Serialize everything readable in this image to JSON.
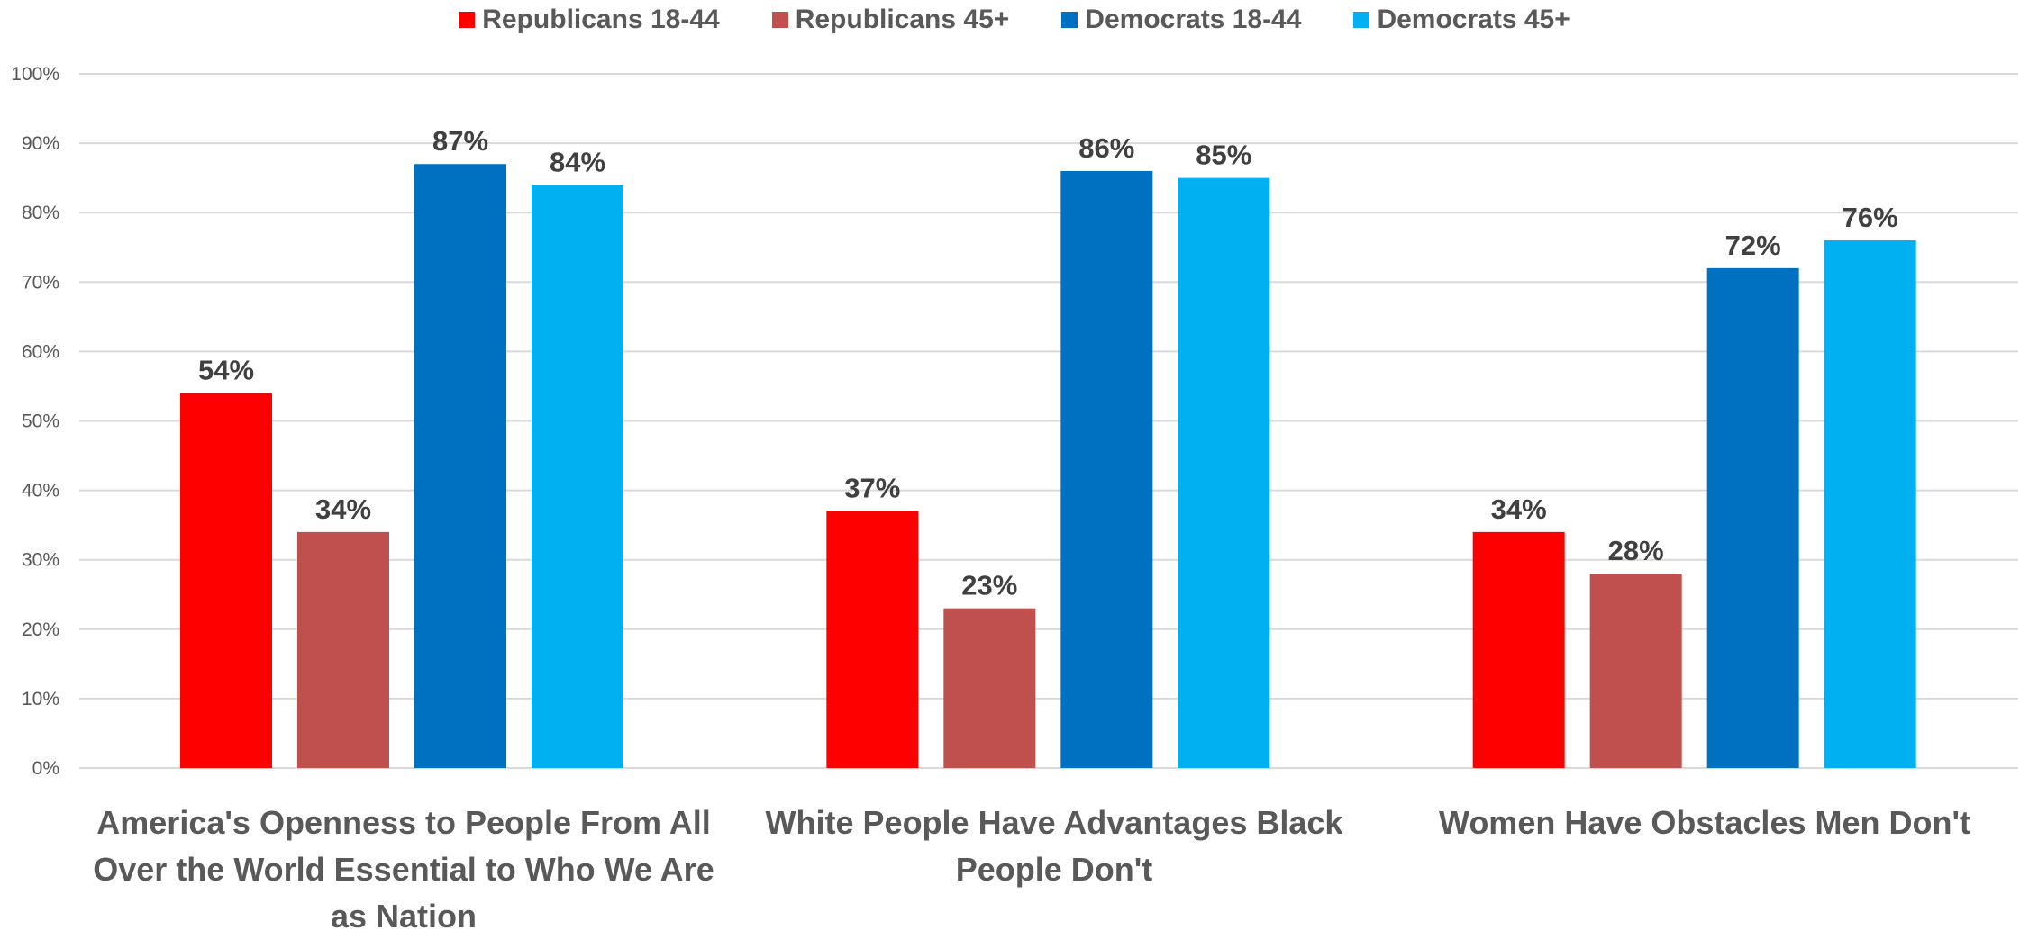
{
  "chart_data": {
    "type": "bar",
    "categories": [
      "America's Openness to People From All Over the World Essential to Who We Are as Nation",
      "White People Have Advantages Black People Don't",
      "Women Have Obstacles Men Don't"
    ],
    "series": [
      {
        "name": "Republicans 18-44",
        "color": "#FF0000",
        "values": [
          54,
          37,
          34
        ]
      },
      {
        "name": "Republicans 45+",
        "color": "#C0504D",
        "values": [
          34,
          23,
          28
        ]
      },
      {
        "name": "Democrats 18-44",
        "color": "#0070C0",
        "values": [
          87,
          86,
          72
        ]
      },
      {
        "name": "Democrats 45+",
        "color": "#00B0F0",
        "values": [
          84,
          85,
          76
        ]
      }
    ],
    "data_labels": [
      [
        "54%",
        "37%",
        "34%"
      ],
      [
        "34%",
        "23%",
        "28%"
      ],
      [
        "87%",
        "86%",
        "72%"
      ],
      [
        "84%",
        "85%",
        "76%"
      ]
    ],
    "y_ticks": [
      "0%",
      "10%",
      "20%",
      "30%",
      "40%",
      "50%",
      "60%",
      "70%",
      "80%",
      "90%",
      "100%"
    ],
    "ylim": [
      0,
      100
    ],
    "title": "",
    "xlabel": "",
    "ylabel": "",
    "grid": true,
    "legend_position": "top"
  },
  "colors": {
    "grid": "#D9D9D9",
    "axis_text": "#595959",
    "data_label": "#404040"
  }
}
